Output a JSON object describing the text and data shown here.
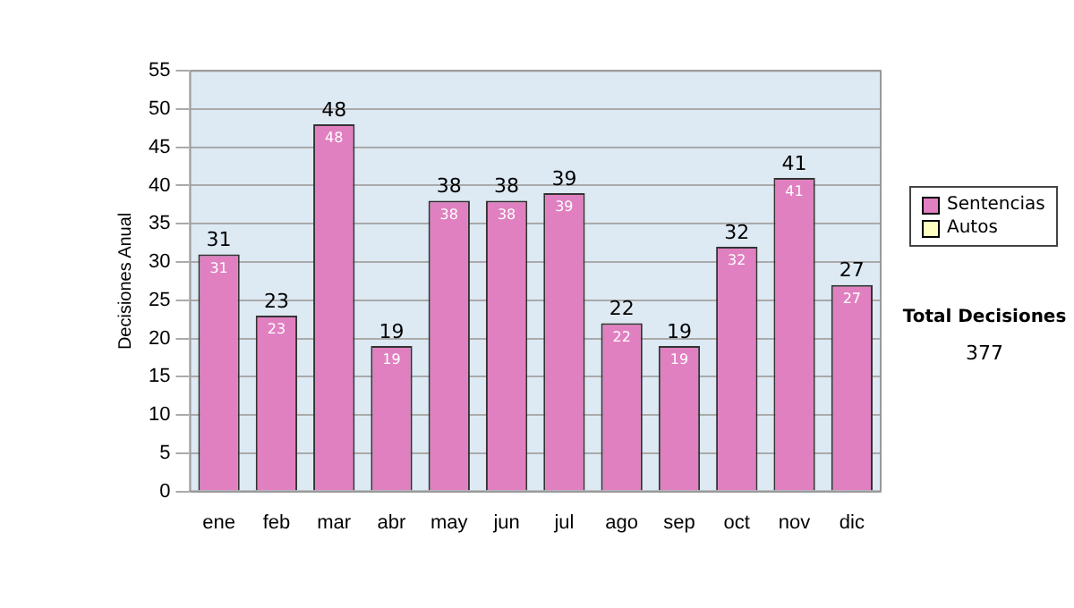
{
  "chart_data": {
    "type": "bar",
    "ylabel": "Decisiones Anual",
    "categories": [
      "ene",
      "feb",
      "mar",
      "abr",
      "may",
      "jun",
      "jul",
      "ago",
      "sep",
      "oct",
      "nov",
      "dic"
    ],
    "series": [
      {
        "name": "Sentencias",
        "color": "#e080c0",
        "values": [
          31,
          23,
          48,
          19,
          38,
          38,
          39,
          22,
          19,
          32,
          41,
          27
        ]
      },
      {
        "name": "Autos",
        "color": "#ffffc0",
        "values": [
          null,
          null,
          null,
          null,
          null,
          null,
          null,
          null,
          null,
          null,
          null,
          null
        ]
      }
    ],
    "ylim": [
      0,
      55
    ],
    "yticks": [
      0,
      5,
      10,
      15,
      20,
      25,
      30,
      35,
      40,
      45,
      50,
      55
    ],
    "grid": "y",
    "legend": "right",
    "data_labels": true,
    "totals": [
      "31",
      "23",
      "48",
      "19",
      "38",
      "38",
      "39",
      "22",
      "19",
      "32",
      "41",
      "27"
    ],
    "annotations": [
      "Total Decisiones",
      "377"
    ]
  }
}
